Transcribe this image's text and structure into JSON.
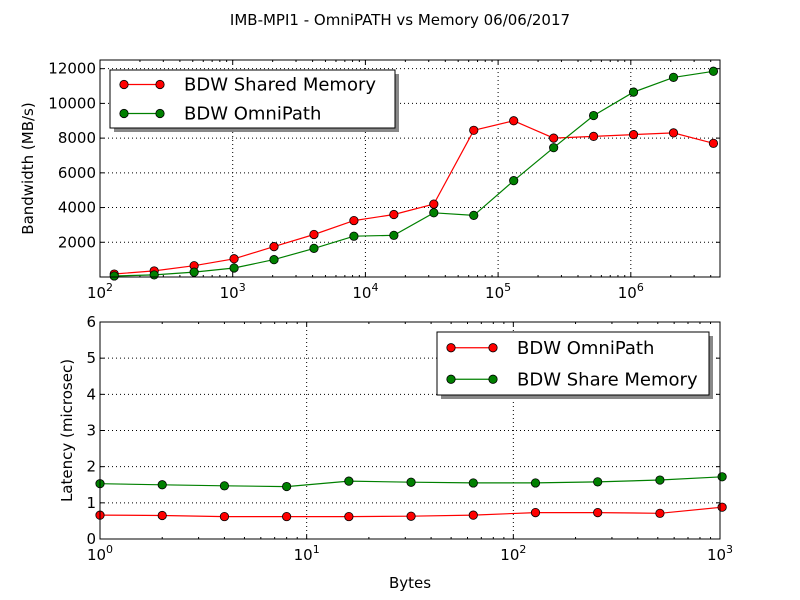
{
  "figure_title": "IMB-MPI1 - OmniPATH vs  Memory  06/06/2017",
  "colors": {
    "red": "#ff0000",
    "green": "#008000",
    "grid": "#000000"
  },
  "chart_data": [
    {
      "type": "line",
      "title": "",
      "xlabel": "",
      "ylabel": "Bandwidth (MB/s)",
      "xscale": "log",
      "xlim": [
        100,
        4700000
      ],
      "ylim": [
        0,
        12500
      ],
      "xtick_values": [
        100,
        1000,
        10000,
        100000,
        1000000
      ],
      "xtick_labels": [
        {
          "base": "10",
          "exp": "2"
        },
        {
          "base": "10",
          "exp": "3"
        },
        {
          "base": "10",
          "exp": "4"
        },
        {
          "base": "10",
          "exp": "5"
        },
        {
          "base": "10",
          "exp": "6"
        }
      ],
      "ytick_values": [
        2000,
        4000,
        6000,
        8000,
        10000,
        12000
      ],
      "ytick_labels": [
        "2000",
        "4000",
        "6000",
        "8000",
        "10000",
        "12000"
      ],
      "grid": true,
      "legend_placement": "upper-left",
      "x": [
        128,
        256,
        512,
        1024,
        2048,
        4096,
        8192,
        16384,
        32768,
        65536,
        131072,
        262144,
        524288,
        1048576,
        2097152,
        4194304
      ],
      "series": [
        {
          "name": "BDW Shared Memory",
          "color": "#ff0000",
          "values": [
            170,
            350,
            650,
            1050,
            1750,
            2450,
            3250,
            3600,
            4200,
            8450,
            9000,
            8000,
            8100,
            8200,
            8300,
            7700
          ]
        },
        {
          "name": "BDW OmniPath",
          "color": "#008000",
          "values": [
            60,
            120,
            280,
            520,
            1000,
            1650,
            2350,
            2400,
            3700,
            3550,
            5550,
            7450,
            9300,
            10650,
            11500,
            11850
          ]
        }
      ]
    },
    {
      "type": "line",
      "title": "",
      "xlabel": "Bytes",
      "ylabel": "Latency (microsec)",
      "xscale": "log",
      "xlim": [
        1,
        1000
      ],
      "ylim": [
        0,
        6
      ],
      "xtick_values": [
        1,
        10,
        100,
        1000
      ],
      "xtick_labels": [
        {
          "base": "10",
          "exp": "0"
        },
        {
          "base": "10",
          "exp": "1"
        },
        {
          "base": "10",
          "exp": "2"
        },
        {
          "base": "10",
          "exp": "3"
        }
      ],
      "ytick_values": [
        0,
        1,
        2,
        3,
        4,
        5,
        6
      ],
      "ytick_labels": [
        "0",
        "1",
        "2",
        "3",
        "4",
        "5",
        "6"
      ],
      "grid": true,
      "legend_placement": "upper-right",
      "x": [
        1,
        2,
        4,
        8,
        16,
        32,
        64,
        128,
        256,
        512,
        1024
      ],
      "series": [
        {
          "name": "BDW OmniPath",
          "color": "#ff0000",
          "values": [
            0.66,
            0.65,
            0.62,
            0.62,
            0.62,
            0.63,
            0.66,
            0.73,
            0.73,
            0.71,
            0.88
          ]
        },
        {
          "name": "BDW Share Memory",
          "color": "#008000",
          "values": [
            1.53,
            1.5,
            1.47,
            1.45,
            1.6,
            1.57,
            1.55,
            1.55,
            1.58,
            1.63,
            1.72
          ]
        }
      ]
    }
  ]
}
